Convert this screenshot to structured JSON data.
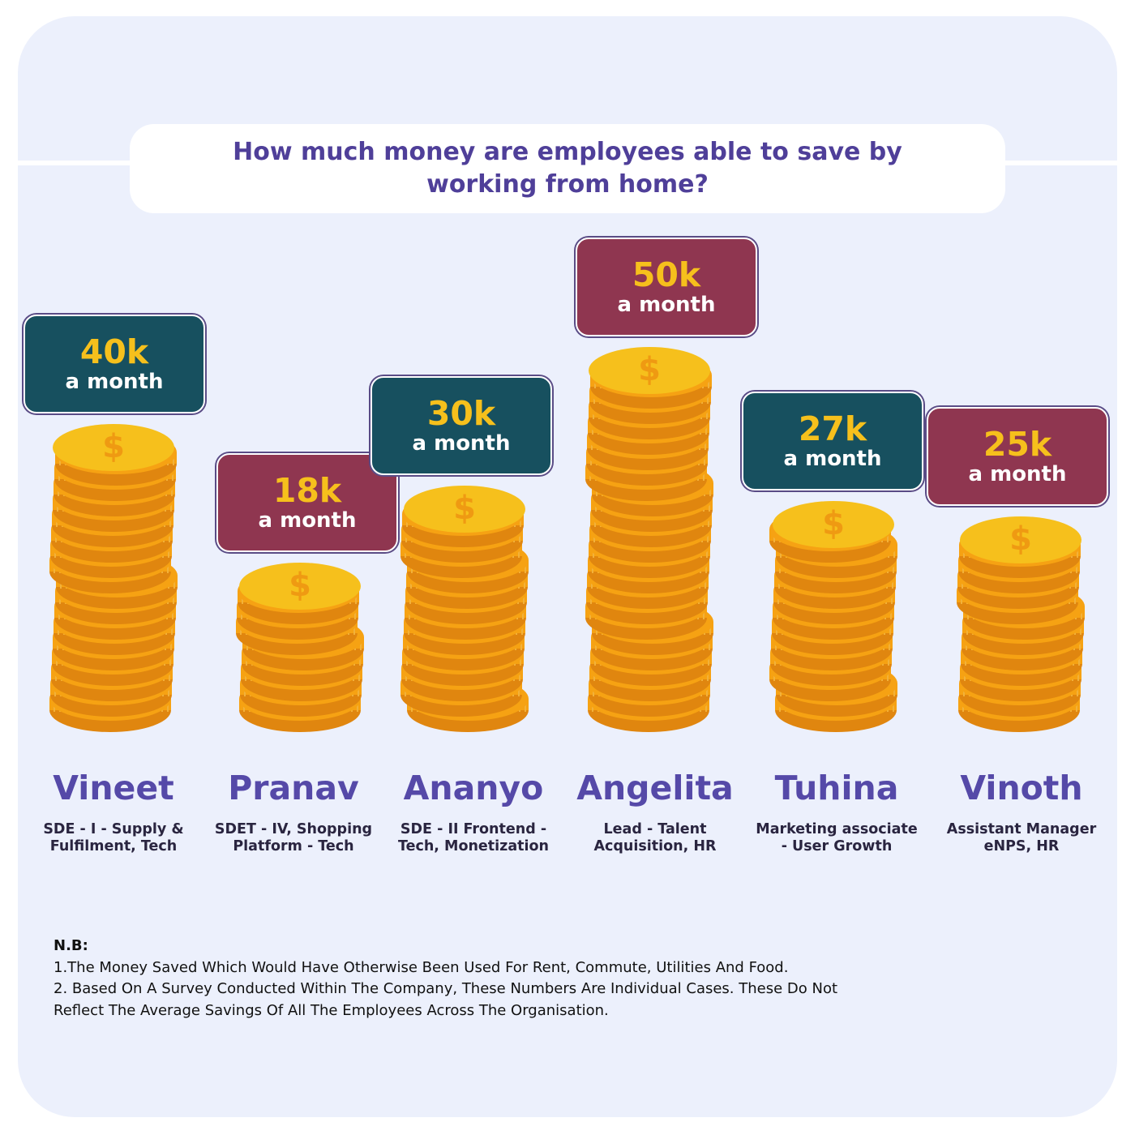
{
  "title": "How much money are employees able to save by working from home?",
  "colors": {
    "background": "#ecf0fc",
    "title": "#4f3f99",
    "teal_badge": "#17505f",
    "maroon_badge": "#8f3650",
    "amount_text": "#f6c01c",
    "coin_face": "#f6c01c",
    "coin_edge": "#f6a213",
    "name_text": "#5549a8"
  },
  "chart_data": {
    "type": "bar",
    "title": "How much money are employees able to save by working from home?",
    "xlabel": "",
    "ylabel": "",
    "unit": "a month",
    "categories": [
      "Vineet",
      "Pranav",
      "Ananyo",
      "Angelita",
      "Tuhina",
      "Vinoth"
    ],
    "values": [
      40,
      18,
      30,
      50,
      27,
      25
    ],
    "labels": [
      "40k",
      "18k",
      "30k",
      "50k",
      "27k",
      "25k"
    ],
    "roles": [
      [
        "SDE - I - Supply &",
        "Fulfilment, Tech"
      ],
      [
        "SDET - IV, Shopping",
        "Platform - Tech"
      ],
      [
        "SDE - II Frontend -",
        "Tech, Monetization"
      ],
      [
        "Lead - Talent",
        "Acquisition, HR"
      ],
      [
        "Marketing associate",
        "- User Growth"
      ],
      [
        "Assistant Manager",
        "eNPS, HR"
      ]
    ],
    "badge_colors": [
      "teal",
      "maroon",
      "teal",
      "maroon",
      "teal",
      "maroon"
    ],
    "mark": "coin-stack"
  },
  "notes": {
    "heading": "N.B:",
    "lines": [
      "1.The Money Saved Which Would Have Otherwise Been Used For Rent, Commute, Utilities And Food.",
      "2. Based On A Survey Conducted Within The Company, These Numbers Are Individual Cases. These Do Not",
      "Reflect The Average Savings Of All The Employees Across The Organisation."
    ]
  },
  "icons": {
    "coin": "dollar-coin-icon"
  }
}
